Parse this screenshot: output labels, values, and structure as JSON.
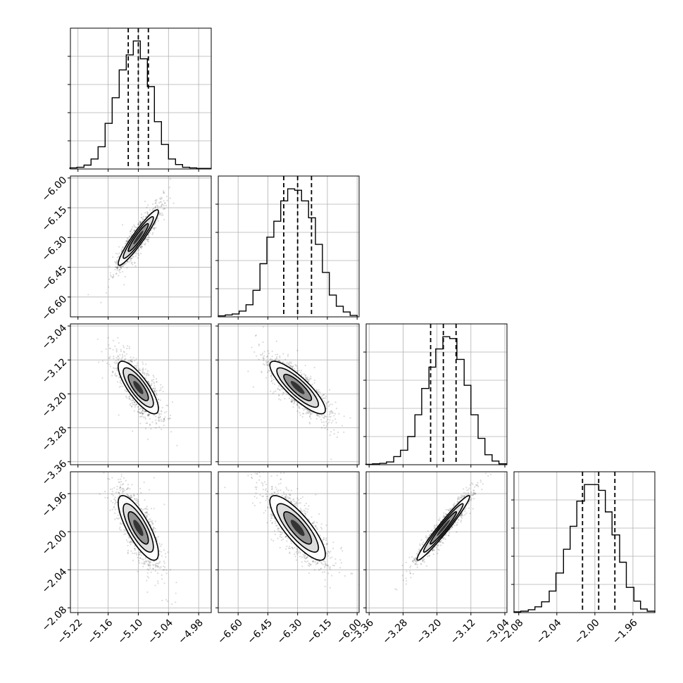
{
  "chart_data": {
    "type": "corner",
    "grid": true,
    "parameters": [
      {
        "median": -5.1,
        "q16": -5.12,
        "q84": -5.08,
        "sigma": 0.02,
        "range": [
          -5.235,
          -4.955
        ],
        "ticks": [
          -5.22,
          -5.16,
          -5.1,
          -5.04,
          -4.98
        ],
        "tick_labels": [
          "−5.22",
          "−5.16",
          "−5.10",
          "−5.04",
          "−4.98"
        ]
      },
      {
        "median": -6.3,
        "q16": -6.37,
        "q84": -6.23,
        "sigma": 0.07,
        "range": [
          -6.7,
          -5.99
        ],
        "ticks": [
          -6.6,
          -6.45,
          -6.3,
          -6.15,
          -6.0
        ],
        "tick_labels": [
          "−6.60",
          "−6.45",
          "−6.30",
          "−6.15",
          "−6.00"
        ]
      },
      {
        "median": -3.185,
        "q16": -3.215,
        "q84": -3.155,
        "sigma": 0.031,
        "range": [
          -3.367,
          -3.035
        ],
        "ticks": [
          -3.36,
          -3.28,
          -3.2,
          -3.12,
          -3.04
        ],
        "tick_labels": [
          "−3.36",
          "−3.28",
          "−3.20",
          "−3.12",
          "−3.04"
        ]
      },
      {
        "median": -1.996,
        "q16": -2.013,
        "q84": -1.979,
        "sigma": 0.017,
        "range": [
          -2.085,
          -1.937
        ],
        "ticks": [
          -2.08,
          -2.04,
          -2.0,
          -1.96
        ],
        "tick_labels": [
          "−2.08",
          "−2.04",
          "−2.00",
          "−1.96"
        ]
      }
    ],
    "histograms": [
      {
        "param": 0,
        "bins": [
          -5.236,
          -5.222,
          -5.208,
          -5.194,
          -5.18,
          -5.166,
          -5.152,
          -5.138,
          -5.124,
          -5.11,
          -5.096,
          -5.082,
          -5.068,
          -5.054,
          -5.04,
          -5.026,
          -5.012,
          -4.998,
          -4.984,
          -4.97,
          -4.956
        ],
        "counts": [
          2,
          3,
          7,
          18,
          40,
          82,
          128,
          178,
          205,
          230,
          198,
          148,
          85,
          44,
          18,
          8,
          3,
          2,
          1,
          1
        ]
      },
      {
        "param": 1,
        "bins": [
          -6.7,
          -6.665,
          -6.63,
          -6.595,
          -6.56,
          -6.525,
          -6.49,
          -6.455,
          -6.42,
          -6.385,
          -6.35,
          -6.315,
          -6.28,
          -6.245,
          -6.21,
          -6.175,
          -6.14,
          -6.105,
          -6.07,
          -6.035,
          -6.0
        ],
        "counts": [
          2,
          4,
          6,
          12,
          25,
          55,
          110,
          165,
          198,
          240,
          265,
          262,
          240,
          205,
          150,
          92,
          45,
          22,
          10,
          3
        ]
      },
      {
        "param": 2,
        "bins": [
          -3.368,
          -3.352,
          -3.335,
          -3.319,
          -3.302,
          -3.286,
          -3.269,
          -3.252,
          -3.236,
          -3.219,
          -3.203,
          -3.186,
          -3.17,
          -3.153,
          -3.136,
          -3.12,
          -3.103,
          -3.087,
          -3.07,
          -3.054,
          -3.037
        ],
        "counts": [
          1,
          2,
          3,
          6,
          18,
          32,
          62,
          110,
          168,
          215,
          255,
          282,
          278,
          232,
          175,
          110,
          58,
          22,
          8,
          2
        ]
      },
      {
        "param": 3,
        "bins": [
          -2.085,
          -2.078,
          -2.07,
          -2.063,
          -2.056,
          -2.048,
          -2.041,
          -2.033,
          -2.026,
          -2.019,
          -2.011,
          -2.004,
          -1.996,
          -1.989,
          -1.982,
          -1.974,
          -1.967,
          -1.959,
          -1.952,
          -1.945,
          -1.937
        ],
        "counts": [
          1,
          2,
          4,
          8,
          15,
          30,
          55,
          88,
          120,
          155,
          178,
          178,
          170,
          140,
          108,
          70,
          35,
          16,
          5,
          2
        ]
      }
    ],
    "pairs": [
      {
        "x_param": 0,
        "y_param": 1,
        "rho": 0.94
      },
      {
        "x_param": 0,
        "y_param": 2,
        "rho": -0.8
      },
      {
        "x_param": 1,
        "y_param": 2,
        "rho": -0.85
      },
      {
        "x_param": 0,
        "y_param": 3,
        "rho": -0.78
      },
      {
        "x_param": 1,
        "y_param": 3,
        "rho": -0.82
      },
      {
        "x_param": 2,
        "y_param": 3,
        "rho": 0.97
      }
    ],
    "contour_levels": [
      0.5,
      1.0,
      1.5,
      2.0
    ],
    "quantiles": [
      0.16,
      0.5,
      0.84
    ]
  }
}
